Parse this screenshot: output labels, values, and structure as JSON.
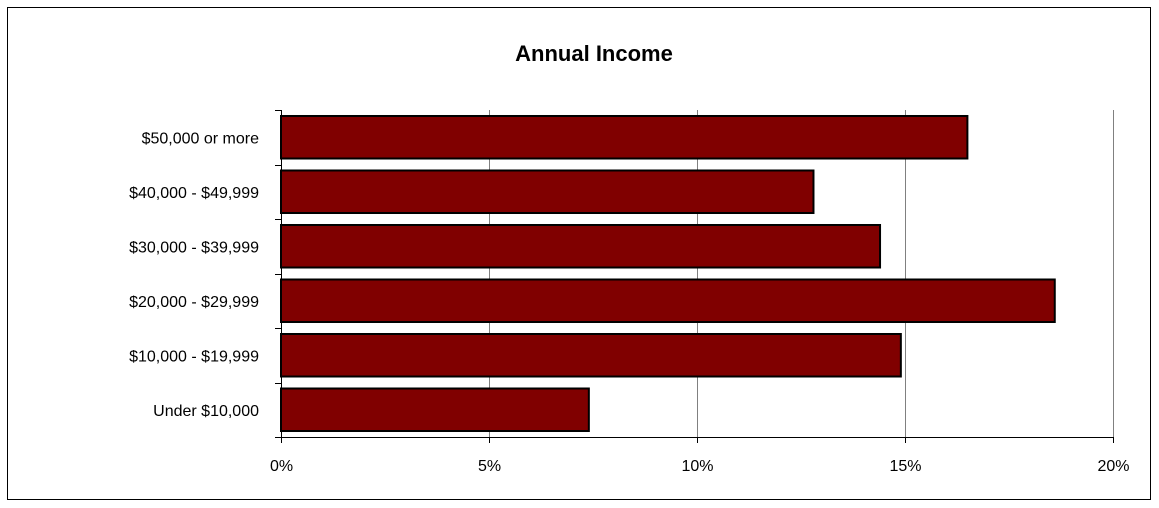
{
  "chart_data": {
    "type": "bar",
    "orientation": "horizontal",
    "title": "Annual Income",
    "xlabel": "",
    "ylabel": "",
    "categories": [
      "$50,000 or more",
      "$40,000 - $49,999",
      "$30,000 - $39,999",
      "$20,000 - $29,999",
      "$10,000 - $19,999",
      "Under $10,000"
    ],
    "values": [
      16.5,
      12.8,
      14.4,
      18.6,
      14.9,
      7.4
    ],
    "value_unit": "%",
    "xlim": [
      0,
      20
    ],
    "xticks": [
      "0%",
      "5%",
      "10%",
      "15%",
      "20%"
    ],
    "xtick_values": [
      0,
      5,
      10,
      15,
      20
    ],
    "grid": "vertical",
    "legend": "none",
    "bar_color": "#800000",
    "bar_edge_color": "#000000"
  }
}
